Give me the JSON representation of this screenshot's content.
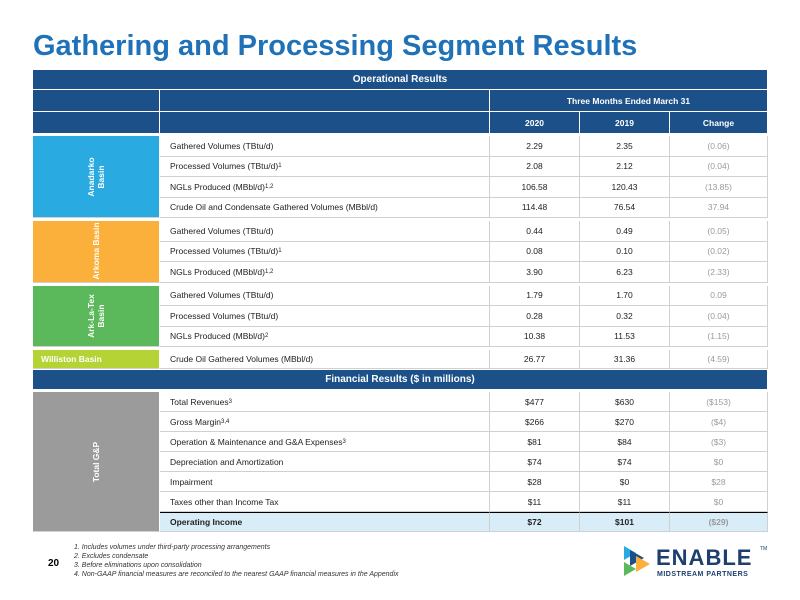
{
  "title": "Gathering and Processing Segment Results",
  "operational": {
    "header": "Operational Results",
    "period": "Three Months Ended March 31",
    "columns": [
      "2020",
      "2019",
      "Change"
    ],
    "groups": [
      {
        "name": "Anadarko Basin",
        "color": "#29abe2",
        "rows": [
          {
            "metric": "Gathered Volumes (TBtu/d)",
            "values": [
              "2.29",
              "2.35",
              "(0.06)"
            ]
          },
          {
            "metric": "Processed Volumes (TBtu/d)",
            "note": "1",
            "values": [
              "2.08",
              "2.12",
              "(0.04)"
            ]
          },
          {
            "metric": "NGLs Produced (MBbl/d)",
            "note": "1,2",
            "values": [
              "106.58",
              "120.43",
              "(13.85)"
            ]
          },
          {
            "metric": "Crude Oil and Condensate Gathered Volumes (MBbl/d)",
            "values": [
              "114.48",
              "76.54",
              "37.94"
            ]
          }
        ]
      },
      {
        "name": "Arkoma Basin",
        "color": "#fbb03b",
        "rows": [
          {
            "metric": "Gathered Volumes (TBtu/d)",
            "values": [
              "0.44",
              "0.49",
              "(0.05)"
            ]
          },
          {
            "metric": "Processed Volumes (TBtu/d)",
            "note": "1",
            "values": [
              "0.08",
              "0.10",
              "(0.02)"
            ]
          },
          {
            "metric": "NGLs Produced (MBbl/d)",
            "note": "1,2",
            "values": [
              "3.90",
              "6.23",
              "(2.33)"
            ]
          }
        ]
      },
      {
        "name": "Ark-La-Tex Basin",
        "color": "#5bb95b",
        "rows": [
          {
            "metric": "Gathered Volumes (TBtu/d)",
            "values": [
              "1.79",
              "1.70",
              "0.09"
            ]
          },
          {
            "metric": "Processed Volumes (TBtu/d)",
            "values": [
              "0.28",
              "0.32",
              "(0.04)"
            ]
          },
          {
            "metric": "NGLs Produced (MBbl/d)",
            "note": "2",
            "values": [
              "10.38",
              "11.53",
              "(1.15)"
            ]
          }
        ]
      },
      {
        "name": "Williston Basin",
        "color": "#b5d334",
        "rows": [
          {
            "metric": "Crude Oil Gathered Volumes (MBbl/d)",
            "values": [
              "26.77",
              "31.36",
              "(4.59)"
            ]
          }
        ]
      }
    ]
  },
  "financial": {
    "header": "Financial Results ($ in millions)",
    "group": "Total G&P",
    "rows": [
      {
        "metric": "Total Revenues",
        "note": "3",
        "values": [
          "$477",
          "$630",
          "($153)"
        ]
      },
      {
        "metric": "Gross Margin",
        "note": "3,4",
        "values": [
          "$266",
          "$270",
          "($4)"
        ]
      },
      {
        "metric": "Operation & Maintenance and G&A Expenses",
        "note": "3",
        "values": [
          "$81",
          "$84",
          "($3)"
        ]
      },
      {
        "metric": "Depreciation and Amortization",
        "values": [
          "$74",
          "$74",
          "$0"
        ]
      },
      {
        "metric": "Impairment",
        "values": [
          "$28",
          "$0",
          "$28"
        ]
      },
      {
        "metric": "Taxes other than Income Tax",
        "values": [
          "$11",
          "$11",
          "$0"
        ]
      },
      {
        "metric": "Operating Income",
        "values": [
          "$72",
          "$101",
          "($29)"
        ]
      }
    ]
  },
  "footnotes": [
    "1. Includes volumes under third-party processing arrangements",
    "2. Excludes condensate",
    "3. Before eliminations upon consolidation",
    "4. Non-GAAP financial measures are reconciled to the nearest GAAP financial measures in the Appendix"
  ],
  "page_number": "20",
  "logo": {
    "name": "ENABLE",
    "tm": "TM",
    "tagline": "MIDSTREAM PARTNERS"
  }
}
